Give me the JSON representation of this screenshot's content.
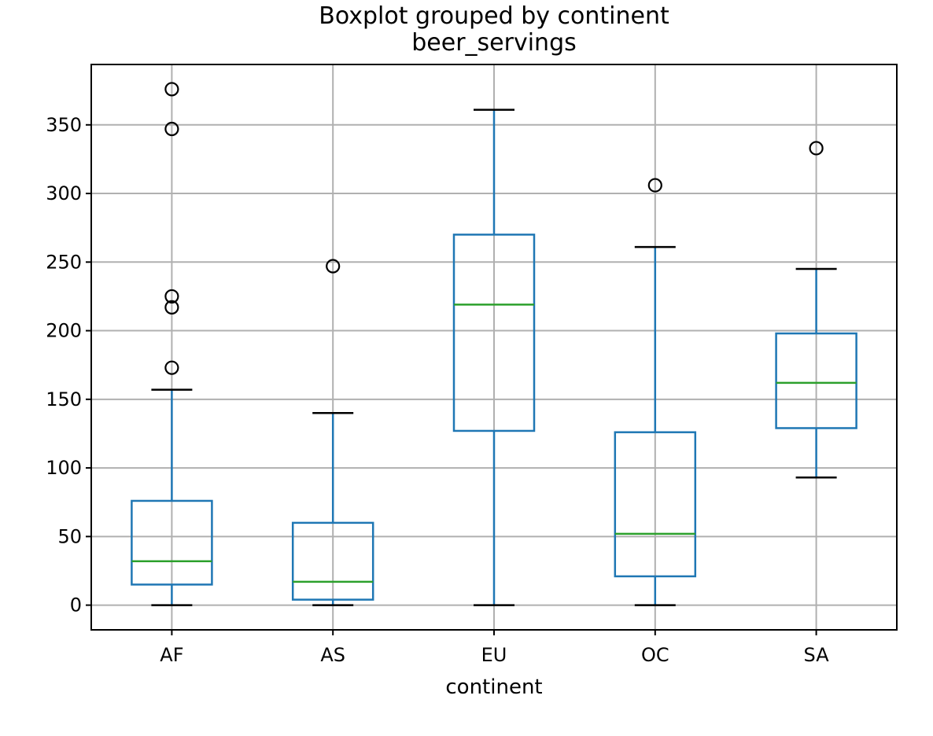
{
  "chart_data": {
    "type": "boxplot",
    "title": "Boxplot grouped by continent",
    "subtitle": "beer_servings",
    "xlabel": "continent",
    "ylabel": "",
    "ylim": [
      -18,
      394
    ],
    "yticks": [
      0,
      50,
      100,
      150,
      200,
      250,
      300,
      350
    ],
    "grid": true,
    "categories": [
      "AF",
      "AS",
      "EU",
      "OC",
      "SA"
    ],
    "boxes": [
      {
        "name": "AF",
        "whislo": 0,
        "q1": 15,
        "med": 32,
        "q3": 76,
        "whishi": 157,
        "fliers": [
          173,
          217,
          225,
          347,
          376
        ]
      },
      {
        "name": "AS",
        "whislo": 0,
        "q1": 4,
        "med": 17,
        "q3": 60,
        "whishi": 140,
        "fliers": [
          247
        ]
      },
      {
        "name": "EU",
        "whislo": 0,
        "q1": 127,
        "med": 219,
        "q3": 270,
        "whishi": 361,
        "fliers": []
      },
      {
        "name": "OC",
        "whislo": 0,
        "q1": 21,
        "med": 52,
        "q3": 126,
        "whishi": 261,
        "fliers": [
          306
        ]
      },
      {
        "name": "SA",
        "whislo": 93,
        "q1": 129,
        "med": 162,
        "q3": 198,
        "whishi": 245,
        "fliers": [
          333
        ]
      }
    ],
    "colors": {
      "box": "#1f77b4",
      "median": "#2ca02c",
      "whisker": "#1f77b4",
      "cap": "#000000",
      "flier": "#000000"
    }
  }
}
